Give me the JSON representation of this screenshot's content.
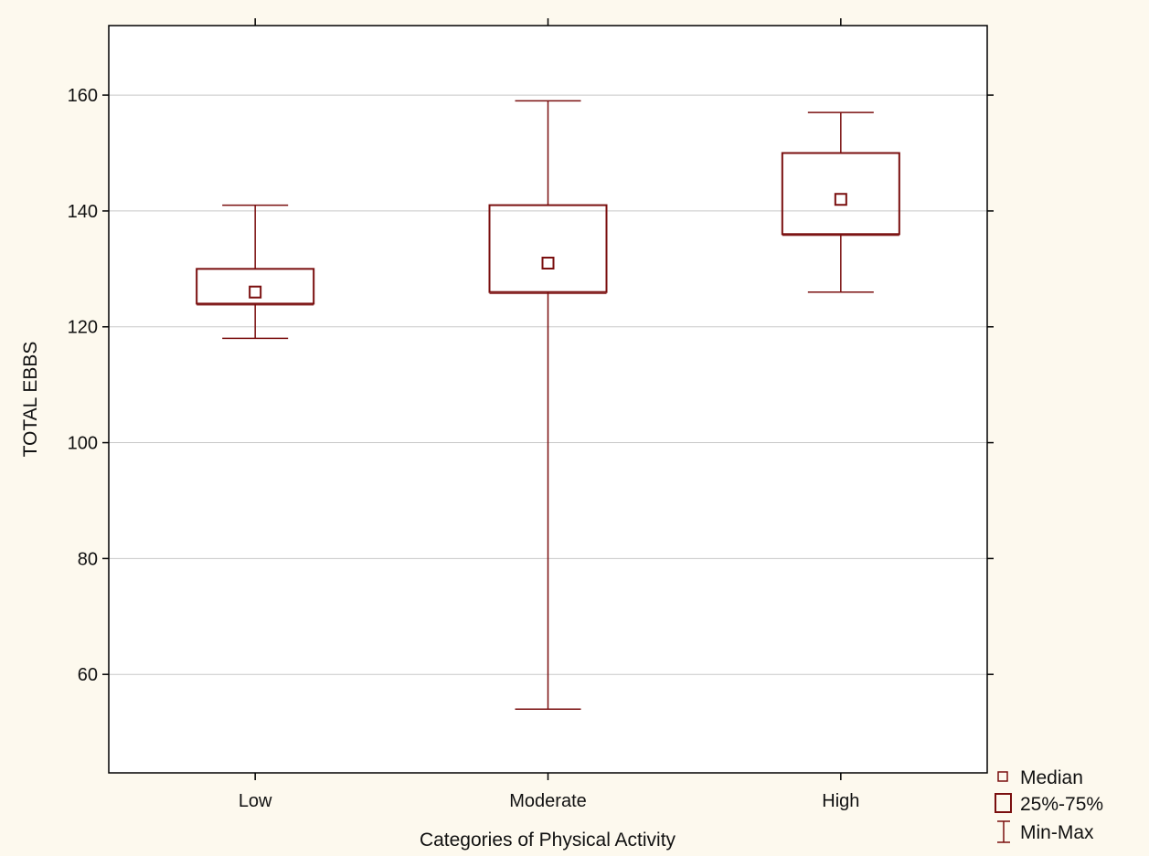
{
  "chart_data": {
    "type": "boxplot",
    "title": "",
    "xlabel": "Categories of Physical Activity",
    "ylabel": "TOTAL EBBS",
    "ylim": [
      43,
      172
    ],
    "yticks": [
      60,
      80,
      100,
      120,
      140,
      160
    ],
    "grid": true,
    "categories": [
      "Low",
      "Moderate",
      "High"
    ],
    "series": [
      {
        "category": "Low",
        "min": 118,
        "q1": 124,
        "median": 126,
        "q3": 130,
        "max": 141
      },
      {
        "category": "Moderate",
        "min": 54,
        "q1": 126,
        "median": 131,
        "q3": 141,
        "max": 159
      },
      {
        "category": "High",
        "min": 126,
        "q1": 136,
        "median": 142,
        "q3": 150,
        "max": 157
      }
    ],
    "legend": {
      "placement": "bottom-right",
      "items": [
        "Median",
        "25%-75%",
        "Min-Max"
      ]
    },
    "colors": {
      "box": "#7a0f0f",
      "grid": "#c8c8c8",
      "background": "#fdf9ee",
      "plot_background": "#ffffff"
    }
  }
}
